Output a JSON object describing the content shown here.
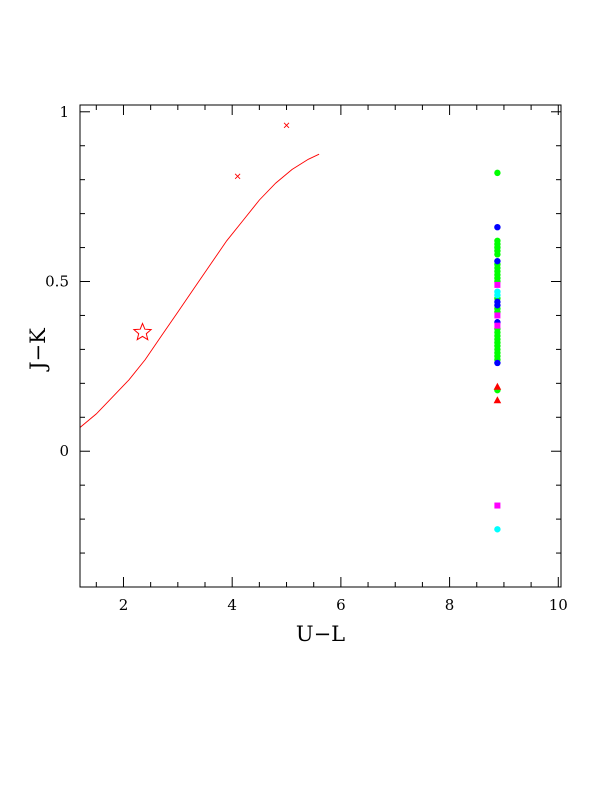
{
  "chart_data": {
    "type": "scatter",
    "title": "",
    "xlabel": "U−L",
    "ylabel": "J−K",
    "xlim": [
      1.2,
      10.05
    ],
    "ylim": [
      -0.4,
      1.02
    ],
    "grid": false,
    "legend": "none",
    "x_ticks": [
      {
        "value": 2,
        "label": "2"
      },
      {
        "value": 4,
        "label": "4"
      },
      {
        "value": 6,
        "label": "6"
      },
      {
        "value": 8,
        "label": "8"
      },
      {
        "value": 10,
        "label": "10"
      }
    ],
    "y_ticks": [
      {
        "value": 0,
        "label": "0"
      },
      {
        "value": 0.5,
        "label": "0.5"
      },
      {
        "value": 1,
        "label": "1"
      }
    ],
    "x_minor_step": 0.5,
    "y_minor_step": 0.1,
    "curve": {
      "color": "#ff0000",
      "points": [
        [
          1.2,
          0.07
        ],
        [
          1.5,
          0.11
        ],
        [
          1.8,
          0.16
        ],
        [
          2.1,
          0.21
        ],
        [
          2.4,
          0.27
        ],
        [
          2.7,
          0.34
        ],
        [
          3.0,
          0.41
        ],
        [
          3.3,
          0.48
        ],
        [
          3.6,
          0.55
        ],
        [
          3.9,
          0.62
        ],
        [
          4.2,
          0.68
        ],
        [
          4.5,
          0.74
        ],
        [
          4.8,
          0.79
        ],
        [
          5.1,
          0.83
        ],
        [
          5.4,
          0.86
        ],
        [
          5.6,
          0.875
        ]
      ],
      "markers": [
        [
          4.1,
          0.81
        ],
        [
          5.0,
          0.96
        ]
      ]
    },
    "star_marker": {
      "x": 2.35,
      "y": 0.35,
      "color": "#ff0000"
    },
    "series": [
      {
        "color": "#00ff00",
        "marker": "circle",
        "x": [
          8.88,
          8.88,
          8.88,
          8.88,
          8.88,
          8.88,
          8.88,
          8.88,
          8.88,
          8.88,
          8.88,
          8.88,
          8.88,
          8.88,
          8.88,
          8.88,
          8.88,
          8.88,
          8.88,
          8.88,
          8.88,
          8.88,
          8.88,
          8.88,
          8.88,
          8.88
        ],
        "y": [
          0.82,
          0.62,
          0.61,
          0.6,
          0.59,
          0.58,
          0.55,
          0.54,
          0.53,
          0.52,
          0.51,
          0.5,
          0.45,
          0.42,
          0.41,
          0.36,
          0.35,
          0.34,
          0.33,
          0.32,
          0.31,
          0.3,
          0.29,
          0.28,
          0.27,
          0.18
        ]
      },
      {
        "color": "#0000ff",
        "marker": "circle",
        "x": [
          8.88,
          8.88,
          8.88,
          8.88,
          8.88,
          8.88
        ],
        "y": [
          0.66,
          0.56,
          0.44,
          0.43,
          0.38,
          0.26
        ]
      },
      {
        "color": "#ff00ff",
        "marker": "square",
        "x": [
          8.88,
          8.88,
          8.88,
          8.88
        ],
        "y": [
          0.49,
          0.4,
          0.37,
          -0.16
        ]
      },
      {
        "color": "#00ffff",
        "marker": "circle",
        "x": [
          8.88,
          8.88,
          8.88
        ],
        "y": [
          0.47,
          0.46,
          -0.23
        ]
      },
      {
        "color": "#ff0000",
        "marker": "triangle",
        "x": [
          8.88,
          8.88
        ],
        "y": [
          0.19,
          0.15
        ]
      }
    ]
  }
}
